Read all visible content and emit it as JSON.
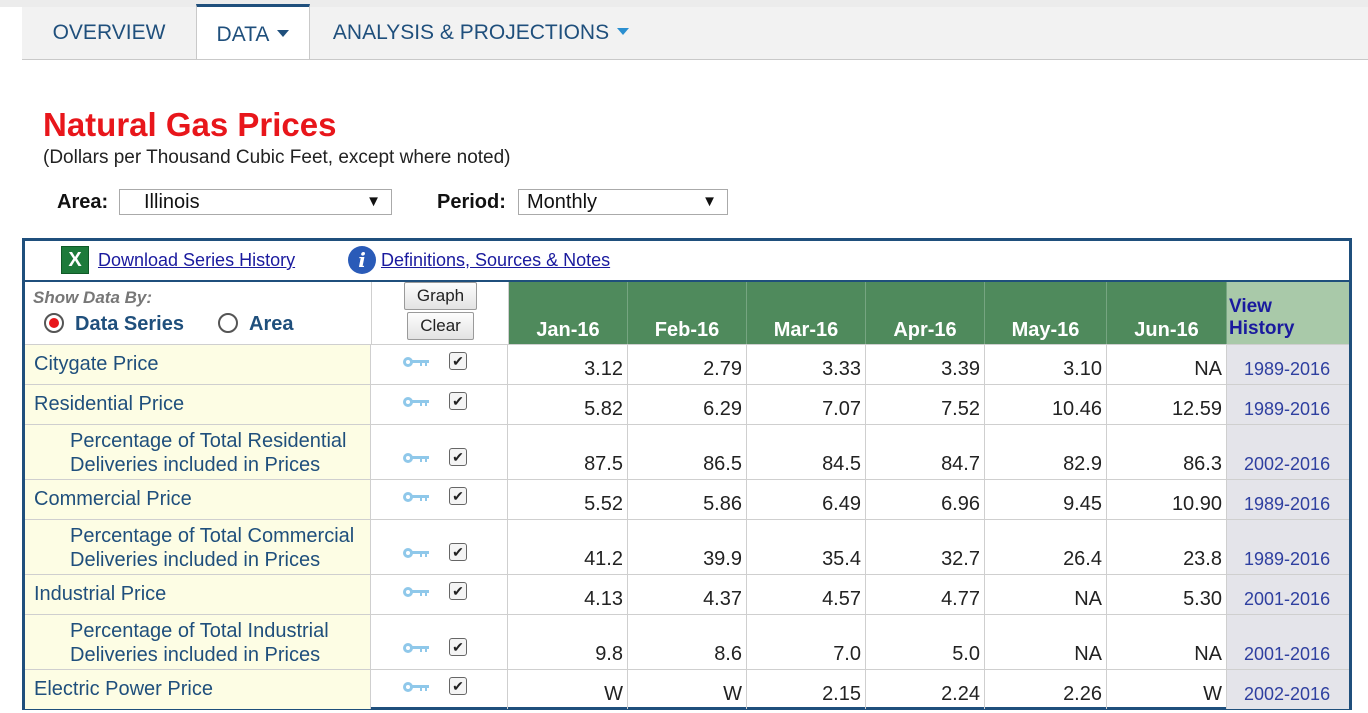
{
  "nav": {
    "tabs": [
      {
        "label": "OVERVIEW",
        "active": false,
        "dropdown": false
      },
      {
        "label": "DATA",
        "active": true,
        "dropdown": true
      },
      {
        "label": "ANALYSIS & PROJECTIONS",
        "active": false,
        "dropdown": true
      }
    ]
  },
  "page": {
    "title": "Natural Gas Prices",
    "subtitle": "(Dollars per Thousand Cubic Feet, except where noted)"
  },
  "filters": {
    "area_label": "Area:",
    "area_value": "Illinois",
    "period_label": "Period:",
    "period_value": "Monthly"
  },
  "links": {
    "download": "Download Series History",
    "definitions": "Definitions, Sources & Notes"
  },
  "controls": {
    "show_by_label": "Show Data By:",
    "option_series": "Data Series",
    "option_area": "Area",
    "selected": "Data Series",
    "graph_button": "Graph",
    "clear_button": "Clear"
  },
  "table": {
    "columns": [
      "Jan-16",
      "Feb-16",
      "Mar-16",
      "Apr-16",
      "May-16",
      "Jun-16"
    ],
    "history_header_line1": "View",
    "history_header_line2": "History",
    "rows": [
      {
        "name": "Citygate Price",
        "sub": false,
        "values": [
          "3.12",
          "2.79",
          "3.33",
          "3.39",
          "3.10",
          "NA"
        ],
        "history": "1989-2016"
      },
      {
        "name": "Residential Price",
        "sub": false,
        "values": [
          "5.82",
          "6.29",
          "7.07",
          "7.52",
          "10.46",
          "12.59"
        ],
        "history": "1989-2016"
      },
      {
        "name": "Percentage of Total Residential",
        "name2": "Deliveries included in Prices",
        "sub": true,
        "values": [
          "87.5",
          "86.5",
          "84.5",
          "84.7",
          "82.9",
          "86.3"
        ],
        "history": "2002-2016"
      },
      {
        "name": "Commercial Price",
        "sub": false,
        "values": [
          "5.52",
          "5.86",
          "6.49",
          "6.96",
          "9.45",
          "10.90"
        ],
        "history": "1989-2016"
      },
      {
        "name": "Percentage of Total Commercial",
        "name2": "Deliveries included in Prices",
        "sub": true,
        "values": [
          "41.2",
          "39.9",
          "35.4",
          "32.7",
          "26.4",
          "23.8"
        ],
        "history": "1989-2016"
      },
      {
        "name": "Industrial Price",
        "sub": false,
        "values": [
          "4.13",
          "4.37",
          "4.57",
          "4.77",
          "NA",
          "5.30"
        ],
        "history": "2001-2016"
      },
      {
        "name": "Percentage of Total Industrial",
        "name2": "Deliveries included in Prices",
        "sub": true,
        "values": [
          "9.8",
          "8.6",
          "7.0",
          "5.0",
          "NA",
          "NA"
        ],
        "history": "2001-2016"
      },
      {
        "name": "Electric Power Price",
        "sub": false,
        "values": [
          "W",
          "W",
          "2.15",
          "2.24",
          "2.26",
          "W"
        ],
        "history": "2002-2016"
      }
    ]
  },
  "colors": {
    "title": "#e8161b",
    "header_green": "#4f8a5c",
    "history_header": "#a9c9a9",
    "row_name_bg": "#fdfde4",
    "nav_text": "#1f4f7c"
  },
  "icons": {
    "excel": "excel-icon",
    "info": "info-icon",
    "key": "key-icon",
    "checkbox": "checkbox-checked-icon"
  }
}
